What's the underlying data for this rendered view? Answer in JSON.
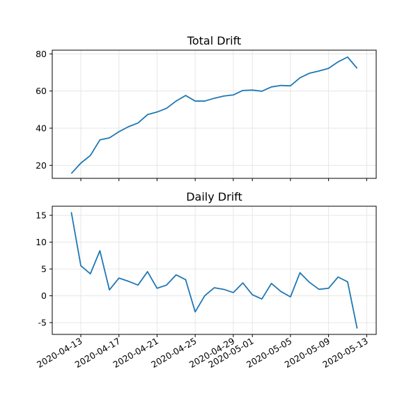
{
  "chart_data": [
    {
      "type": "line",
      "title": "Total Drift",
      "xlabel": "",
      "ylabel": "",
      "x_type": "date",
      "x": [
        "2020-04-12",
        "2020-04-13",
        "2020-04-14",
        "2020-04-15",
        "2020-04-16",
        "2020-04-17",
        "2020-04-18",
        "2020-04-19",
        "2020-04-20",
        "2020-04-21",
        "2020-04-22",
        "2020-04-23",
        "2020-04-24",
        "2020-04-25",
        "2020-04-26",
        "2020-04-27",
        "2020-04-28",
        "2020-04-29",
        "2020-04-30",
        "2020-05-01",
        "2020-05-02",
        "2020-05-03",
        "2020-05-04",
        "2020-05-05",
        "2020-05-06",
        "2020-05-07",
        "2020-05-08",
        "2020-05-09",
        "2020-05-10",
        "2020-05-11",
        "2020-05-12"
      ],
      "series": [
        {
          "values": [
            15.6,
            21.2,
            25.3,
            33.7,
            34.8,
            38.1,
            40.8,
            42.8,
            47.3,
            48.7,
            50.7,
            54.6,
            57.6,
            54.6,
            54.6,
            56.1,
            57.3,
            57.9,
            60.3,
            60.5,
            59.9,
            62.2,
            63.0,
            62.8,
            67.1,
            69.6,
            70.8,
            72.2,
            75.7,
            78.3,
            72.2
          ],
          "color": "#1f77b4"
        }
      ],
      "ylim": [
        13,
        82
      ],
      "yticks": [
        20,
        40,
        60,
        80
      ],
      "xlim": [
        "2020-04-10",
        "2020-05-14"
      ],
      "xticks": [
        "2020-04-13",
        "2020-04-17",
        "2020-04-21",
        "2020-04-25",
        "2020-04-29",
        "2020-05-01",
        "2020-05-05",
        "2020-05-09",
        "2020-05-13"
      ],
      "show_xtick_labels": false,
      "grid": true
    },
    {
      "type": "line",
      "title": "Daily Drift",
      "xlabel": "",
      "ylabel": "",
      "x_type": "date",
      "x": [
        "2020-04-12",
        "2020-04-13",
        "2020-04-14",
        "2020-04-15",
        "2020-04-16",
        "2020-04-17",
        "2020-04-18",
        "2020-04-19",
        "2020-04-20",
        "2020-04-21",
        "2020-04-22",
        "2020-04-23",
        "2020-04-24",
        "2020-04-25",
        "2020-04-26",
        "2020-04-27",
        "2020-04-28",
        "2020-04-29",
        "2020-04-30",
        "2020-05-01",
        "2020-05-02",
        "2020-05-03",
        "2020-05-04",
        "2020-05-05",
        "2020-05-06",
        "2020-05-07",
        "2020-05-08",
        "2020-05-09",
        "2020-05-10",
        "2020-05-11",
        "2020-05-12"
      ],
      "series": [
        {
          "values": [
            15.6,
            5.6,
            4.1,
            8.4,
            1.1,
            3.3,
            2.7,
            2.0,
            4.5,
            1.4,
            2.0,
            3.9,
            3.0,
            -3.0,
            0.0,
            1.5,
            1.2,
            0.6,
            2.4,
            0.2,
            -0.6,
            2.3,
            0.8,
            -0.2,
            4.3,
            2.5,
            1.2,
            1.4,
            3.5,
            2.6,
            -6.1
          ],
          "color": "#1f77b4"
        }
      ],
      "ylim": [
        -7.2,
        16.7
      ],
      "yticks": [
        -5,
        0,
        5,
        10,
        15
      ],
      "xlim": [
        "2020-04-10",
        "2020-05-14"
      ],
      "xticks": [
        "2020-04-13",
        "2020-04-17",
        "2020-04-21",
        "2020-04-25",
        "2020-04-29",
        "2020-05-01",
        "2020-05-05",
        "2020-05-09",
        "2020-05-13"
      ],
      "show_xtick_labels": true,
      "grid": true
    }
  ]
}
